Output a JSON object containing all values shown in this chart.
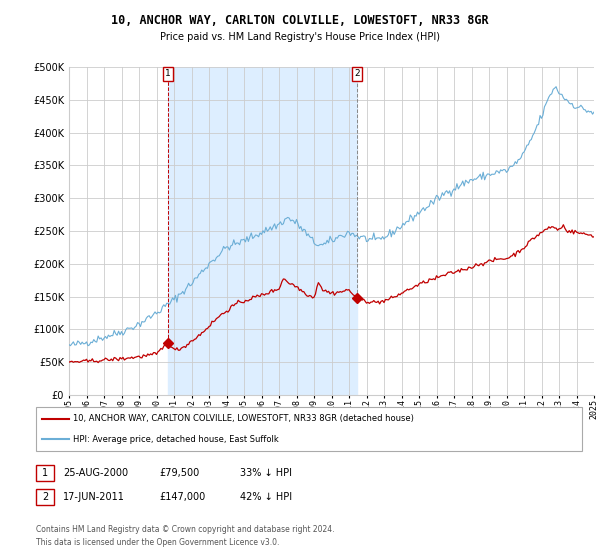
{
  "title": "10, ANCHOR WAY, CARLTON COLVILLE, LOWESTOFT, NR33 8GR",
  "subtitle": "Price paid vs. HM Land Registry's House Price Index (HPI)",
  "xlim": [
    1995,
    2025
  ],
  "ylim": [
    0,
    500000
  ],
  "yticks": [
    0,
    50000,
    100000,
    150000,
    200000,
    250000,
    300000,
    350000,
    400000,
    450000,
    500000
  ],
  "hpi_color": "#6baed6",
  "price_color": "#c00000",
  "shade_color": "#ddeeff",
  "ann1_x": 2000.65,
  "ann1_y": 79500,
  "ann2_x": 2011.46,
  "ann2_y": 147000,
  "legend_line1": "10, ANCHOR WAY, CARLTON COLVILLE, LOWESTOFT, NR33 8GR (detached house)",
  "legend_line2": "HPI: Average price, detached house, East Suffolk",
  "table_row1": [
    "1",
    "25-AUG-2000",
    "£79,500",
    "33% ↓ HPI"
  ],
  "table_row2": [
    "2",
    "17-JUN-2011",
    "£147,000",
    "42% ↓ HPI"
  ],
  "footer": "Contains HM Land Registry data © Crown copyright and database right 2024.\nThis data is licensed under the Open Government Licence v3.0.",
  "bg_color": "#ffffff",
  "grid_color": "#cccccc"
}
